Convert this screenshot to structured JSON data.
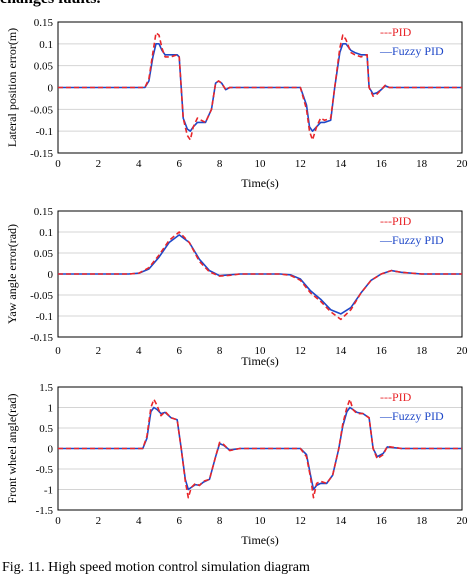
{
  "top_text": "changes faults.",
  "caption": "Fig. 11. High speed motion control simulation diagram",
  "colors": {
    "pid": "#e8262a",
    "fuzzy": "#1f48c8",
    "grid": "#d4d4d4",
    "frame": "#000000"
  },
  "chart_data": [
    {
      "type": "line",
      "xlabel": "Time(s)",
      "ylabel": "Lateral position error(m)",
      "xlim": [
        0,
        20
      ],
      "ylim": [
        -0.15,
        0.15
      ],
      "xticks": [
        "0",
        "2",
        "4",
        "6",
        "8",
        "10",
        "12",
        "14",
        "16",
        "18",
        "20"
      ],
      "yticks": [
        "0.15",
        "0.1",
        "0.05",
        "0",
        "-0.05",
        "-0.1",
        "-0.15"
      ],
      "grid": true,
      "legend": "top-right",
      "series": [
        {
          "name": "---PID",
          "style": "dashed",
          "color": "#e8262a",
          "x": [
            0,
            4.3,
            4.5,
            4.7,
            4.85,
            5.0,
            5.15,
            5.3,
            5.6,
            5.9,
            6.0,
            6.1,
            6.2,
            6.4,
            6.55,
            6.7,
            6.9,
            7.1,
            7.3,
            7.6,
            7.8,
            7.95,
            8.1,
            8.3,
            8.5,
            9.0,
            12.0,
            12.3,
            12.45,
            12.6,
            12.8,
            13.0,
            13.2,
            13.5,
            13.7,
            13.95,
            14.1,
            14.25,
            14.5,
            14.7,
            15.0,
            15.3,
            15.4,
            15.6,
            15.8,
            16.0,
            16.2,
            16.4,
            17.0,
            20.0
          ],
          "y": [
            0,
            0,
            0.02,
            0.08,
            0.125,
            0.12,
            0.09,
            0.07,
            0.07,
            0.075,
            0.07,
            0.0,
            -0.07,
            -0.11,
            -0.12,
            -0.09,
            -0.07,
            -0.075,
            -0.08,
            -0.05,
            0.01,
            0.015,
            0.01,
            -0.005,
            0,
            0,
            0,
            -0.05,
            -0.1,
            -0.12,
            -0.09,
            -0.07,
            -0.075,
            -0.07,
            0.0,
            0.09,
            0.12,
            0.11,
            0.08,
            0.075,
            0.07,
            0.075,
            0.0,
            -0.02,
            -0.015,
            -0.005,
            0.005,
            0,
            0,
            0
          ]
        },
        {
          "name": "—Fuzzy PID",
          "style": "solid",
          "color": "#1f48c8",
          "x": [
            0,
            4.3,
            4.5,
            4.7,
            4.85,
            5.0,
            5.15,
            5.3,
            5.6,
            5.9,
            6.0,
            6.1,
            6.2,
            6.4,
            6.55,
            6.7,
            6.9,
            7.1,
            7.3,
            7.6,
            7.8,
            7.95,
            8.1,
            8.3,
            8.5,
            9.0,
            12.0,
            12.3,
            12.45,
            12.6,
            12.8,
            13.0,
            13.2,
            13.5,
            13.7,
            13.95,
            14.1,
            14.25,
            14.5,
            14.7,
            15.0,
            15.3,
            15.4,
            15.6,
            15.8,
            16.0,
            16.2,
            16.4,
            17.0,
            20.0
          ],
          "y": [
            0,
            0,
            0.015,
            0.07,
            0.1,
            0.1,
            0.085,
            0.075,
            0.075,
            0.075,
            0.07,
            0.0,
            -0.07,
            -0.095,
            -0.1,
            -0.09,
            -0.08,
            -0.08,
            -0.08,
            -0.05,
            0.01,
            0.015,
            0.01,
            -0.005,
            0,
            0,
            0,
            -0.04,
            -0.09,
            -0.1,
            -0.09,
            -0.08,
            -0.08,
            -0.075,
            0.0,
            0.08,
            0.1,
            0.1,
            0.085,
            0.08,
            0.075,
            0.075,
            0.0,
            -0.015,
            -0.012,
            -0.005,
            0.004,
            0,
            0,
            0
          ]
        }
      ]
    },
    {
      "type": "line",
      "xlabel": "Time(s)",
      "ylabel": "Yaw angle error(rad)",
      "xlim": [
        0,
        20
      ],
      "ylim": [
        -0.15,
        0.15
      ],
      "xticks": [
        "0",
        "2",
        "4",
        "6",
        "8",
        "10",
        "12",
        "14",
        "16",
        "18",
        "20"
      ],
      "yticks": [
        "0.15",
        "0.1",
        "0.05",
        "0",
        "-0.05",
        "-0.1",
        "-0.15"
      ],
      "grid": true,
      "legend": "top-right",
      "series": [
        {
          "name": "---PID",
          "style": "dashed",
          "color": "#e8262a",
          "x": [
            0,
            3.5,
            4.0,
            4.5,
            5.0,
            5.5,
            6.0,
            6.5,
            7.0,
            7.5,
            8.0,
            8.5,
            9.0,
            10.0,
            11.0,
            11.5,
            12.0,
            12.5,
            13.0,
            13.5,
            14.0,
            14.5,
            15.0,
            15.5,
            16.0,
            16.5,
            17.0,
            18.0,
            20.0
          ],
          "y": [
            0,
            0,
            0.002,
            0.015,
            0.045,
            0.08,
            0.1,
            0.075,
            0.03,
            0.005,
            -0.005,
            -0.003,
            0,
            0,
            0,
            -0.003,
            -0.015,
            -0.045,
            -0.065,
            -0.09,
            -0.108,
            -0.085,
            -0.045,
            -0.015,
            0,
            0.008,
            0.004,
            0,
            0
          ]
        },
        {
          "name": "—Fuzzy PID",
          "style": "solid",
          "color": "#1f48c8",
          "x": [
            0,
            3.5,
            4.0,
            4.5,
            5.0,
            5.5,
            6.0,
            6.5,
            7.0,
            7.5,
            8.0,
            8.5,
            9.0,
            10.0,
            11.0,
            11.5,
            12.0,
            12.5,
            13.0,
            13.5,
            14.0,
            14.5,
            15.0,
            15.5,
            16.0,
            16.5,
            17.0,
            18.0,
            20.0
          ],
          "y": [
            0,
            0,
            0.002,
            0.012,
            0.04,
            0.075,
            0.093,
            0.075,
            0.035,
            0.008,
            -0.004,
            -0.002,
            0,
            0,
            0,
            -0.002,
            -0.012,
            -0.04,
            -0.06,
            -0.085,
            -0.095,
            -0.08,
            -0.045,
            -0.015,
            0,
            0.008,
            0.004,
            0,
            0
          ]
        }
      ]
    },
    {
      "type": "line",
      "xlabel": "Time(s)",
      "ylabel": "Front wheel angle(rad)",
      "xlim": [
        0,
        20
      ],
      "ylim": [
        -1.5,
        1.5
      ],
      "xticks": [
        "0",
        "2",
        "4",
        "6",
        "8",
        "10",
        "12",
        "14",
        "16",
        "18",
        "20"
      ],
      "yticks": [
        "1.5",
        "1",
        "0.5",
        "0",
        "-0.5",
        "-1",
        "-1.5"
      ],
      "grid": true,
      "legend": "top-right",
      "series": [
        {
          "name": "---PID",
          "style": "dashed",
          "color": "#e8262a",
          "x": [
            0,
            4.2,
            4.4,
            4.6,
            4.75,
            4.9,
            5.1,
            5.3,
            5.6,
            5.9,
            6.1,
            6.3,
            6.45,
            6.6,
            6.8,
            7.0,
            7.2,
            7.5,
            7.8,
            8.0,
            8.2,
            8.5,
            9.0,
            12.0,
            12.3,
            12.5,
            12.65,
            12.8,
            13.0,
            13.3,
            13.6,
            13.9,
            14.1,
            14.3,
            14.45,
            14.6,
            14.8,
            15.1,
            15.4,
            15.6,
            15.8,
            16.1,
            16.3,
            17.0,
            20.0
          ],
          "y": [
            0,
            0,
            0.3,
            1.0,
            1.2,
            1.05,
            0.8,
            0.9,
            0.75,
            0.7,
            0,
            -0.8,
            -1.2,
            -0.95,
            -0.85,
            -0.9,
            -0.8,
            -0.75,
            -0.2,
            0.15,
            0.1,
            -0.05,
            0,
            0,
            -0.2,
            -0.7,
            -1.2,
            -0.85,
            -0.8,
            -0.85,
            -0.65,
            0.0,
            0.6,
            1.0,
            1.2,
            0.95,
            0.85,
            0.85,
            0.75,
            0.0,
            -0.25,
            -0.15,
            0.05,
            0,
            0
          ]
        },
        {
          "name": "—Fuzzy PID",
          "style": "solid",
          "color": "#1f48c8",
          "x": [
            0,
            4.2,
            4.4,
            4.6,
            4.75,
            4.9,
            5.1,
            5.3,
            5.6,
            5.9,
            6.1,
            6.3,
            6.45,
            6.6,
            6.8,
            7.0,
            7.2,
            7.5,
            7.8,
            8.0,
            8.2,
            8.5,
            9.0,
            12.0,
            12.3,
            12.5,
            12.65,
            12.8,
            13.0,
            13.3,
            13.6,
            13.9,
            14.1,
            14.3,
            14.45,
            14.6,
            14.8,
            15.1,
            15.4,
            15.6,
            15.8,
            16.1,
            16.3,
            17.0,
            20.0
          ],
          "y": [
            0,
            0,
            0.25,
            0.9,
            1.0,
            0.95,
            0.85,
            0.88,
            0.75,
            0.7,
            0,
            -0.75,
            -1.0,
            -0.95,
            -0.88,
            -0.9,
            -0.82,
            -0.75,
            -0.2,
            0.12,
            0.08,
            -0.04,
            0,
            0,
            -0.15,
            -0.65,
            -1.0,
            -0.9,
            -0.85,
            -0.85,
            -0.65,
            0.0,
            0.55,
            0.9,
            1.0,
            0.95,
            0.88,
            0.85,
            0.75,
            0.0,
            -0.2,
            -0.12,
            0.04,
            0,
            0
          ]
        }
      ]
    }
  ]
}
